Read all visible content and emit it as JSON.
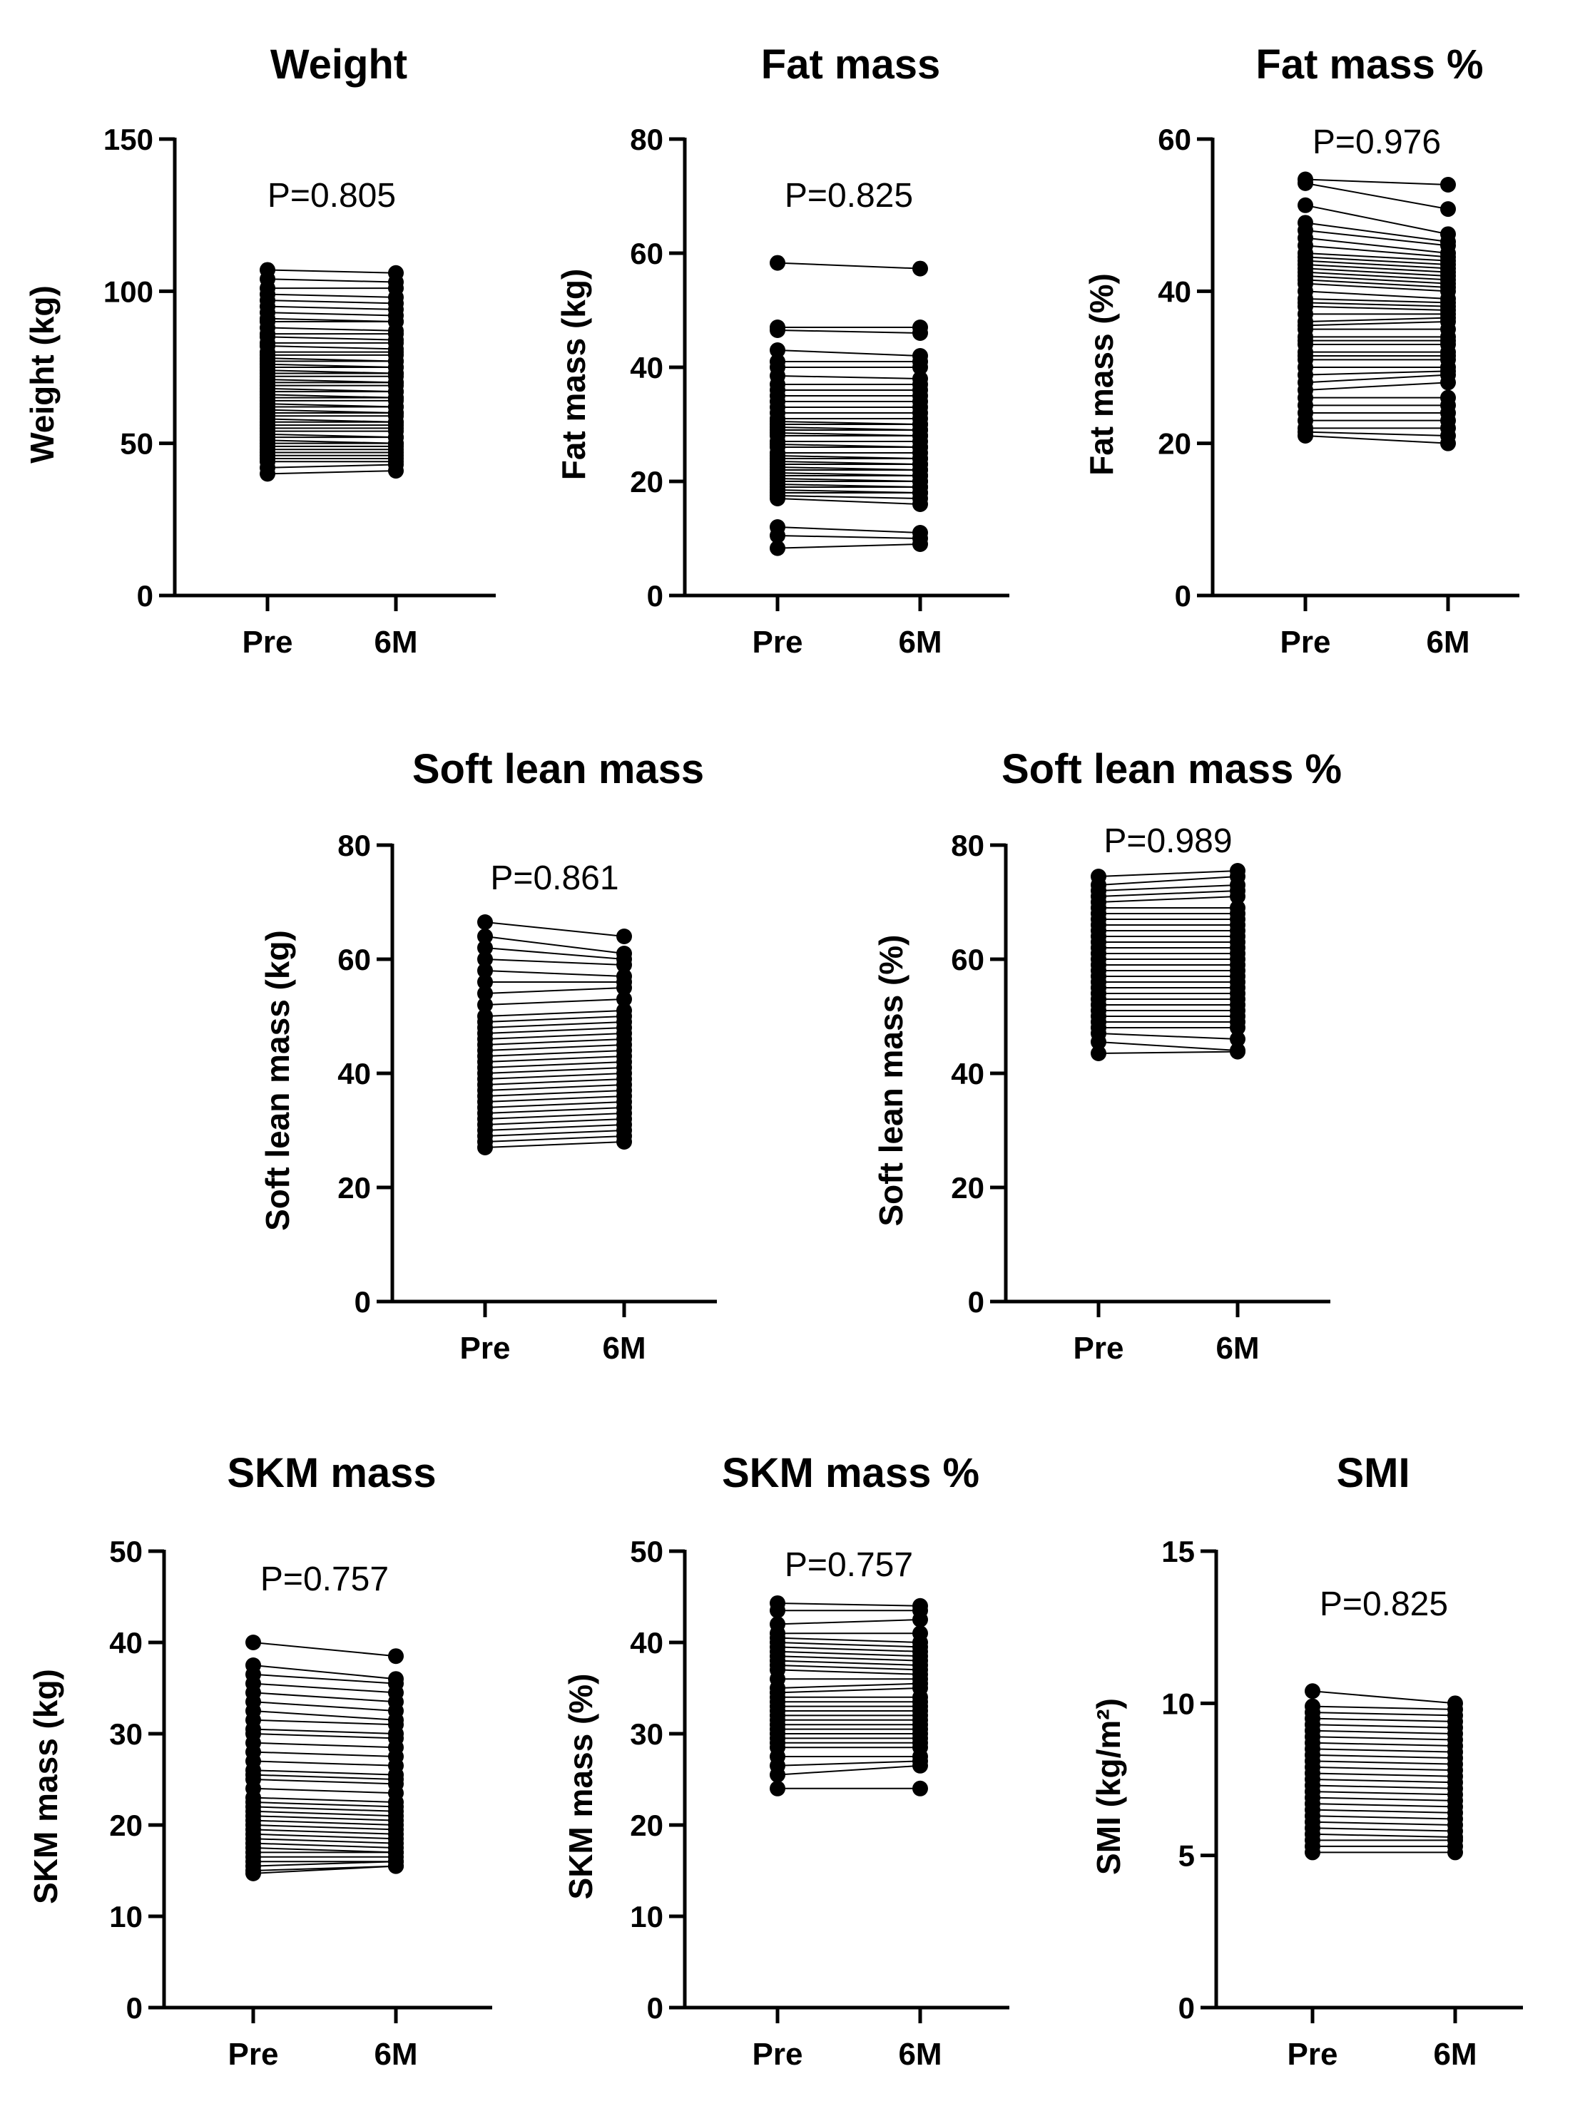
{
  "chart_data": [
    {
      "type": "paired-dot",
      "title": "Weight",
      "ylabel": "Weight (kg)",
      "ylim": [
        0,
        150
      ],
      "yticks": [
        0,
        50,
        100,
        150
      ],
      "categories": [
        "Pre",
        "6M"
      ],
      "annotation": "P=0.805",
      "pre": [
        107,
        104,
        101,
        99,
        97,
        95,
        93,
        91,
        90,
        88,
        86,
        85,
        83,
        82,
        80,
        79,
        78,
        77,
        76,
        75,
        74,
        73,
        72,
        71,
        70,
        69,
        68,
        67,
        66,
        65,
        64,
        63,
        62,
        61,
        60,
        59,
        58,
        57,
        56,
        55,
        54,
        53,
        52,
        51,
        50,
        49,
        48,
        47,
        46,
        45,
        44,
        42,
        40
      ],
      "post": [
        106,
        103,
        101,
        98,
        96,
        94,
        92,
        90,
        90,
        87,
        86,
        84,
        83,
        81,
        80,
        79,
        77,
        77,
        75,
        75,
        73,
        73,
        72,
        70,
        70,
        69,
        67,
        67,
        65,
        65,
        64,
        62,
        62,
        60,
        60,
        59,
        57,
        57,
        56,
        55,
        54,
        52,
        52,
        50,
        50,
        49,
        48,
        47,
        46,
        45,
        44,
        43,
        41
      ]
    },
    {
      "type": "paired-dot",
      "title": "Fat mass",
      "ylabel": "Fat mass (kg)",
      "ylim": [
        0,
        80
      ],
      "yticks": [
        0,
        20,
        40,
        60,
        80
      ],
      "categories": [
        "Pre",
        "6M"
      ],
      "annotation": "P=0.825",
      "pre": [
        58.3,
        47,
        46.5,
        43,
        41,
        40,
        38.5,
        37,
        36,
        35,
        34,
        33,
        32,
        31,
        30.5,
        30,
        29.5,
        29,
        28.5,
        28,
        27,
        26.5,
        26,
        25,
        24.5,
        24,
        23.5,
        23,
        22.5,
        22,
        21.5,
        21,
        20.5,
        20,
        19.5,
        19,
        18.5,
        18,
        17.5,
        17,
        12,
        10.5,
        8.3
      ],
      "post": [
        57.3,
        47,
        46,
        42,
        41,
        40,
        38,
        37,
        36,
        35,
        34,
        33,
        32,
        31,
        30,
        30,
        29,
        29,
        28,
        28,
        27,
        26,
        26,
        25,
        24,
        24,
        23,
        23,
        22,
        22,
        21,
        21,
        20,
        20,
        19,
        19,
        18,
        18,
        17,
        16,
        11,
        10,
        9
      ]
    },
    {
      "type": "paired-dot",
      "title": "Fat mass %",
      "ylabel": "Fat mass (%)",
      "ylim": [
        0,
        60
      ],
      "yticks": [
        0,
        20,
        40,
        60
      ],
      "categories": [
        "Pre",
        "6M"
      ],
      "annotation": "P=0.976",
      "pre": [
        54.7,
        54.2,
        51.3,
        49,
        48,
        47,
        46,
        45,
        44.5,
        44,
        43.5,
        43,
        42.5,
        42,
        41.5,
        41,
        40,
        39,
        38.5,
        38,
        37,
        36,
        35.5,
        35,
        34,
        33.5,
        33,
        32,
        31.5,
        31,
        30,
        29,
        28,
        27,
        26,
        25,
        24,
        23,
        22,
        21.5,
        21
      ],
      "post": [
        54,
        50.8,
        47.5,
        46.5,
        46,
        45,
        44.5,
        44,
        43.5,
        43,
        42.5,
        42,
        41.5,
        41,
        40.5,
        40,
        39,
        38.5,
        38,
        37.5,
        37,
        36.5,
        36,
        35,
        34,
        33.5,
        33,
        32,
        31.5,
        31,
        30,
        29.5,
        29,
        28,
        26,
        25,
        24,
        23,
        22,
        21,
        20
      ]
    },
    {
      "type": "paired-dot",
      "title": "Soft lean mass",
      "ylabel": "Soft lean mass (kg)",
      "ylim": [
        0,
        80
      ],
      "yticks": [
        0,
        20,
        40,
        60,
        80
      ],
      "categories": [
        "Pre",
        "6M"
      ],
      "annotation": "P=0.861",
      "pre": [
        66.5,
        64,
        62,
        60,
        58,
        56,
        54,
        52,
        50,
        49,
        48,
        47,
        46,
        45,
        44,
        43,
        42,
        41,
        40,
        39,
        38,
        37,
        36,
        35,
        34,
        33,
        32,
        31,
        30,
        29,
        28,
        27
      ],
      "post": [
        64,
        61,
        60,
        59,
        57,
        56,
        55,
        53,
        51,
        50,
        49,
        48,
        47,
        46,
        45,
        44,
        43,
        42,
        41,
        40,
        39,
        38,
        37,
        36,
        35,
        34,
        33,
        32,
        31,
        30,
        29,
        28
      ]
    },
    {
      "type": "paired-dot",
      "title": "Soft lean mass %",
      "ylabel": "Soft lean mass (%)",
      "ylim": [
        0,
        80
      ],
      "yticks": [
        0,
        20,
        40,
        60,
        80
      ],
      "categories": [
        "Pre",
        "6M"
      ],
      "annotation": "P=0.989",
      "pre": [
        74.5,
        73,
        72,
        71,
        70,
        69,
        68,
        67,
        66,
        65,
        64,
        63,
        62,
        61,
        60,
        59,
        58,
        57,
        56,
        55,
        54,
        53,
        52,
        51,
        50,
        49,
        48,
        47,
        45.5,
        43.5
      ],
      "post": [
        75.5,
        74.5,
        73,
        72,
        71,
        69,
        68,
        67,
        66,
        65,
        64,
        63,
        62,
        61,
        60,
        59,
        58,
        57,
        56,
        55,
        54,
        53,
        52,
        51,
        50,
        49,
        48,
        46,
        44,
        43.8
      ]
    },
    {
      "type": "paired-dot",
      "title": "SKM mass",
      "ylabel": "SKM mass (kg)",
      "ylim": [
        0,
        50
      ],
      "yticks": [
        0,
        10,
        20,
        30,
        40,
        50
      ],
      "categories": [
        "Pre",
        "6M"
      ],
      "annotation": "P=0.757",
      "pre": [
        40,
        37.5,
        36.5,
        35.5,
        34.5,
        33.5,
        32.5,
        31.5,
        30.5,
        30,
        29,
        28,
        27,
        26,
        25.5,
        25,
        24,
        23,
        22.5,
        22,
        21.5,
        21,
        20.5,
        20,
        19.5,
        19,
        18.5,
        18,
        17.5,
        17,
        16.5,
        16,
        15.5,
        15,
        14.7
      ],
      "post": [
        38.5,
        36,
        35.5,
        34.5,
        33.5,
        32.5,
        31.5,
        31,
        30,
        29.5,
        28.5,
        27.5,
        26.5,
        25.5,
        25,
        24.5,
        23.5,
        22.5,
        22,
        21.5,
        21,
        20.5,
        20,
        19.5,
        19,
        18.5,
        18,
        17.5,
        17,
        17,
        16.5,
        16,
        16,
        15.5,
        15.5
      ]
    },
    {
      "type": "paired-dot",
      "title": "SKM mass %",
      "ylabel": "SKM mass (%)",
      "ylim": [
        0,
        50
      ],
      "yticks": [
        0,
        10,
        20,
        30,
        40,
        50
      ],
      "categories": [
        "Pre",
        "6M"
      ],
      "annotation": "P=0.757",
      "pre": [
        44.3,
        43.5,
        42,
        41,
        40.5,
        40,
        39.5,
        39,
        38.5,
        38,
        37.5,
        37,
        36,
        35,
        34.5,
        34,
        33.5,
        33,
        32.5,
        32,
        31.5,
        31,
        30.5,
        30,
        29.5,
        29,
        28.5,
        27.5,
        26.5,
        25.5,
        24
      ],
      "post": [
        44,
        43.5,
        42.5,
        41,
        40,
        39.5,
        39,
        38.5,
        38,
        37.5,
        37,
        36.5,
        36,
        35.5,
        35,
        34,
        33.5,
        33,
        32.5,
        32,
        31.5,
        31,
        30.5,
        30,
        29.5,
        29,
        28.5,
        27.5,
        27,
        26.5,
        24
      ]
    },
    {
      "type": "paired-dot",
      "title": "SMI",
      "ylabel": "SMI (kg/m²)",
      "ylim": [
        0,
        15
      ],
      "yticks": [
        0,
        5,
        10,
        15
      ],
      "categories": [
        "Pre",
        "6M"
      ],
      "annotation": "P=0.825",
      "pre": [
        10.4,
        9.9,
        9.7,
        9.5,
        9.3,
        9.1,
        8.9,
        8.7,
        8.5,
        8.3,
        8.1,
        7.9,
        7.7,
        7.5,
        7.3,
        7.1,
        6.9,
        6.7,
        6.5,
        6.3,
        6.1,
        5.9,
        5.7,
        5.5,
        5.3,
        5.1
      ],
      "post": [
        10,
        9.8,
        9.6,
        9.4,
        9.2,
        9.0,
        8.8,
        8.6,
        8.4,
        8.2,
        8.0,
        7.8,
        7.6,
        7.4,
        7.2,
        7.0,
        6.8,
        6.6,
        6.4,
        6.2,
        6.0,
        5.8,
        5.6,
        5.5,
        5.3,
        5.1
      ]
    }
  ]
}
